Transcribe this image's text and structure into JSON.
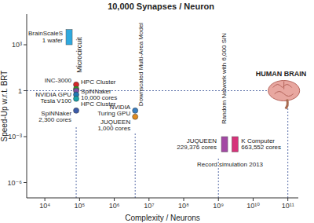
{
  "chart_data": {
    "type": "scatter",
    "title": "10,000 Synapses / Neuron",
    "x_label": "Complexity / Neurons",
    "y_label": "Speed-Up w.r.t. BRT",
    "log": true,
    "grid": false,
    "xlim": [
      3000,
      200000000000
    ],
    "ylim": [
      1e-07,
      100000
    ],
    "xticks": [
      {
        "value": 10000,
        "label": "10⁴"
      },
      {
        "value": 100000,
        "label": "10⁵"
      },
      {
        "value": 1000000,
        "label": "10⁶"
      },
      {
        "value": 10000000,
        "label": "10⁷"
      },
      {
        "value": 100000000,
        "label": "10⁸"
      },
      {
        "value": 1000000000,
        "label": "10⁹"
      },
      {
        "value": 10000000000,
        "label": "10¹⁰"
      },
      {
        "value": 100000000000,
        "label": "10¹¹"
      }
    ],
    "yticks": [
      {
        "value": 1e-06,
        "label": "10⁻⁶"
      },
      {
        "value": 0.001,
        "label": "10⁻³"
      },
      1,
      {
        "value": 1000,
        "label": "10³"
      }
    ],
    "series": [
      {
        "name": "BrainScaleS\n1 wafer",
        "type": "range",
        "color": "#2ea9df",
        "x": [
          50000
        ],
        "low": [
          1000
        ],
        "values": [
          10000
        ]
      },
      {
        "name": "INC-3000",
        "type": "scatter",
        "color": "#d62728",
        "x": [
          80000
        ],
        "values": [
          2.5
        ]
      },
      {
        "name": "HPC Cluster",
        "type": "scatter",
        "color": "#2ca02c",
        "x": [
          80000
        ],
        "values": [
          1.3
        ]
      },
      {
        "name": "SpiNNaker\n10,000 cores",
        "type": "scatter",
        "color": "#7b4fa0",
        "x": [
          80000
        ],
        "values": [
          1
        ]
      },
      {
        "name": "NVIDIA GPU\nTesla V100",
        "type": "scatter",
        "color": "#1f77b4",
        "x": [
          80000
        ],
        "values": [
          0.55
        ]
      },
      {
        "name": "HPC Cluster",
        "type": "scatter",
        "color": "#17a2a8",
        "x": [
          80000
        ],
        "values": [
          0.3
        ]
      },
      {
        "name": "SpiNNaker\n2,300 cores",
        "type": "scatter",
        "color": "#3b5bab",
        "x": [
          80000
        ],
        "values": [
          0.05
        ]
      },
      {
        "name": "NVIDIA\nTuring GPU",
        "type": "scatter",
        "color": "#3a7fc1",
        "x": [
          4000000
        ],
        "values": [
          0.05
        ]
      },
      {
        "name": "JUQUEEN\n1,000 cores",
        "type": "scatter",
        "color": "#e08a1e",
        "x": [
          4000000
        ],
        "values": [
          0.02
        ]
      },
      {
        "name": "JUQUEEN\n229,376 cores",
        "type": "range",
        "color": "#a349a4",
        "x": [
          1500000000
        ],
        "low": [
          0.0001
        ],
        "values": [
          0.001
        ]
      },
      {
        "name": "K Computer\n663,552 cores",
        "type": "range",
        "color": "#d6337a",
        "x": [
          3000000000
        ],
        "low": [
          0.0001
        ],
        "values": [
          0.001
        ]
      }
    ],
    "annotations": [
      "Microcircuit",
      "Downscaled Multi-Area Model",
      "Random Network with 6,000 S/N",
      "Record simulation 2013",
      "HUMAN BRAIN"
    ],
    "reference_x": [
      80000,
      4000000,
      1000000000,
      100000000000
    ],
    "reference_y": [
      1
    ]
  }
}
